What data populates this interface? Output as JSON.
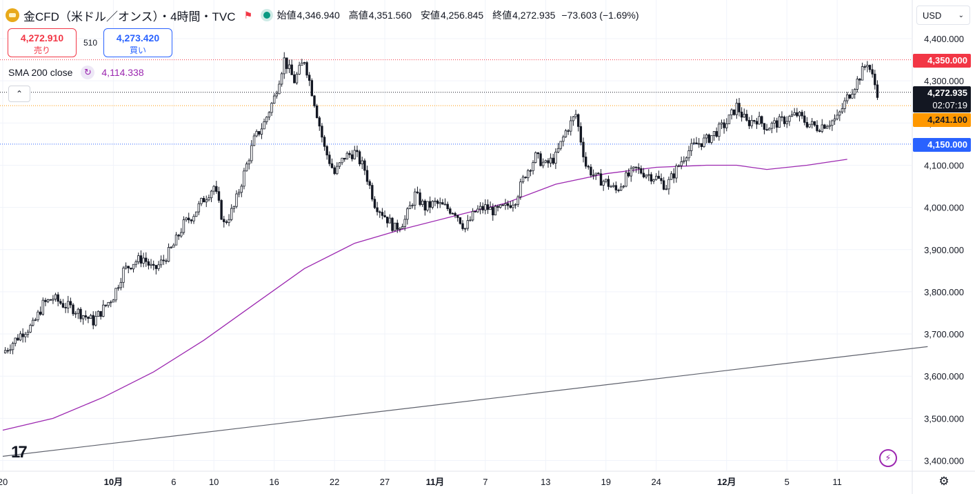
{
  "header": {
    "symbol_icon": "gold-coin-icon",
    "title": "金CFD（米ドル／オンス）・4時間・TVC",
    "open_label": "始値",
    "open_value": "4,346.940",
    "high_label": "高値",
    "high_value": "4,351.560",
    "low_label": "安値",
    "low_value": "4,256.845",
    "close_label": "終値",
    "close_value": "4,272.935",
    "change": "−73.603 (−1.69%)"
  },
  "trade": {
    "sell_price": "4,272.910",
    "sell_label": "売り",
    "spread": "510",
    "buy_price": "4,273.420",
    "buy_label": "買い"
  },
  "indicator": {
    "name": "SMA 200 close",
    "value": "4,114.338"
  },
  "currency": {
    "selected": "USD"
  },
  "price_tags": {
    "alert_high": "4,350.000",
    "current_price": "4,272.935",
    "countdown": "02:07:19",
    "alert_mid": "4,241.100",
    "alert_low": "4,150.000"
  },
  "colors": {
    "up": "#089981",
    "down": "#f23645",
    "candle": "#131722",
    "sma": "#9c27b0",
    "trend": "#5d606b",
    "alert_red": "#f23645",
    "alert_orange": "#ff9800",
    "alert_blue": "#2962ff"
  },
  "chart_data": {
    "type": "candlestick",
    "ylim": [
      3380,
      4440
    ],
    "y_ticks": [
      "4,400.000",
      "4,300.000",
      "4,200.000",
      "4,100.000",
      "4,000.000",
      "3,900.000",
      "3,800.000",
      "3,700.000",
      "3,600.000",
      "3,500.000",
      "3,400.000"
    ],
    "y_tick_values": [
      4400,
      4300,
      4200,
      4100,
      4000,
      3900,
      3800,
      3700,
      3600,
      3500,
      3400
    ],
    "x_ticks": [
      "20",
      "10月",
      "6",
      "10",
      "16",
      "22",
      "27",
      "11月",
      "7",
      "13",
      "19",
      "24",
      "12月",
      "5",
      "11"
    ],
    "x_tick_days": [
      0,
      11,
      17,
      21,
      27,
      33,
      38,
      43,
      48,
      54,
      60,
      65,
      72,
      78,
      83
    ],
    "x_range_days": [
      0,
      92
    ],
    "close_path": [
      [
        0,
        3655
      ],
      [
        2,
        3705
      ],
      [
        3,
        3720
      ],
      [
        4,
        3770
      ],
      [
        5,
        3785
      ],
      [
        6,
        3770
      ],
      [
        7,
        3760
      ],
      [
        8,
        3745
      ],
      [
        9,
        3730
      ],
      [
        10,
        3760
      ],
      [
        11,
        3790
      ],
      [
        12,
        3850
      ],
      [
        13,
        3870
      ],
      [
        14,
        3880
      ],
      [
        15,
        3850
      ],
      [
        16,
        3875
      ],
      [
        17,
        3910
      ],
      [
        18,
        3960
      ],
      [
        19,
        3985
      ],
      [
        20,
        4020
      ],
      [
        21,
        4050
      ],
      [
        22,
        3960
      ],
      [
        23,
        4000
      ],
      [
        24,
        4080
      ],
      [
        25,
        4160
      ],
      [
        26,
        4200
      ],
      [
        27,
        4260
      ],
      [
        28,
        4350
      ],
      [
        29,
        4300
      ],
      [
        30,
        4350
      ],
      [
        31,
        4250
      ],
      [
        32,
        4140
      ],
      [
        33,
        4080
      ],
      [
        34,
        4120
      ],
      [
        35,
        4130
      ],
      [
        36,
        4090
      ],
      [
        37,
        4010
      ],
      [
        38,
        3980
      ],
      [
        39,
        3950
      ],
      [
        40,
        3970
      ],
      [
        41,
        4030
      ],
      [
        42,
        4000
      ],
      [
        43,
        4010
      ],
      [
        44,
        4000
      ],
      [
        45,
        3990
      ],
      [
        46,
        3950
      ],
      [
        47,
        3990
      ],
      [
        48,
        4000
      ],
      [
        49,
        3990
      ],
      [
        50,
        4000
      ],
      [
        51,
        4020
      ],
      [
        52,
        4080
      ],
      [
        53,
        4120
      ],
      [
        54,
        4100
      ],
      [
        55,
        4120
      ],
      [
        56,
        4180
      ],
      [
        57,
        4220
      ],
      [
        58,
        4100
      ],
      [
        59,
        4070
      ],
      [
        60,
        4060
      ],
      [
        61,
        4040
      ],
      [
        62,
        4070
      ],
      [
        63,
        4090
      ],
      [
        64,
        4080
      ],
      [
        65,
        4070
      ],
      [
        66,
        4050
      ],
      [
        67,
        4090
      ],
      [
        68,
        4130
      ],
      [
        69,
        4150
      ],
      [
        70,
        4160
      ],
      [
        71,
        4180
      ],
      [
        72,
        4200
      ],
      [
        73,
        4240
      ],
      [
        74,
        4200
      ],
      [
        75,
        4210
      ],
      [
        76,
        4190
      ],
      [
        77,
        4200
      ],
      [
        78,
        4210
      ],
      [
        79,
        4220
      ],
      [
        80,
        4200
      ],
      [
        81,
        4190
      ],
      [
        82,
        4200
      ],
      [
        83,
        4210
      ],
      [
        84,
        4260
      ],
      [
        85,
        4300
      ],
      [
        86,
        4345
      ],
      [
        87,
        4273
      ]
    ],
    "sma_200": [
      [
        0,
        3472
      ],
      [
        5,
        3500
      ],
      [
        10,
        3550
      ],
      [
        15,
        3610
      ],
      [
        20,
        3685
      ],
      [
        25,
        3770
      ],
      [
        30,
        3855
      ],
      [
        35,
        3915
      ],
      [
        40,
        3950
      ],
      [
        45,
        3980
      ],
      [
        50,
        4010
      ],
      [
        55,
        4055
      ],
      [
        60,
        4080
      ],
      [
        65,
        4095
      ],
      [
        70,
        4100
      ],
      [
        73,
        4100
      ],
      [
        76,
        4090
      ],
      [
        80,
        4100
      ],
      [
        84,
        4114
      ]
    ],
    "trend_line": [
      [
        0,
        3410
      ],
      [
        92,
        3670
      ]
    ],
    "horizontal_lines": [
      {
        "value": 4350,
        "color": "#f23645",
        "style": "dotted"
      },
      {
        "value": 4272.935,
        "color": "#131722",
        "style": "dotted"
      },
      {
        "value": 4241.1,
        "color": "#ff9800",
        "style": "dotted"
      },
      {
        "value": 4150,
        "color": "#2962ff",
        "style": "dotted"
      }
    ],
    "grid": true
  }
}
